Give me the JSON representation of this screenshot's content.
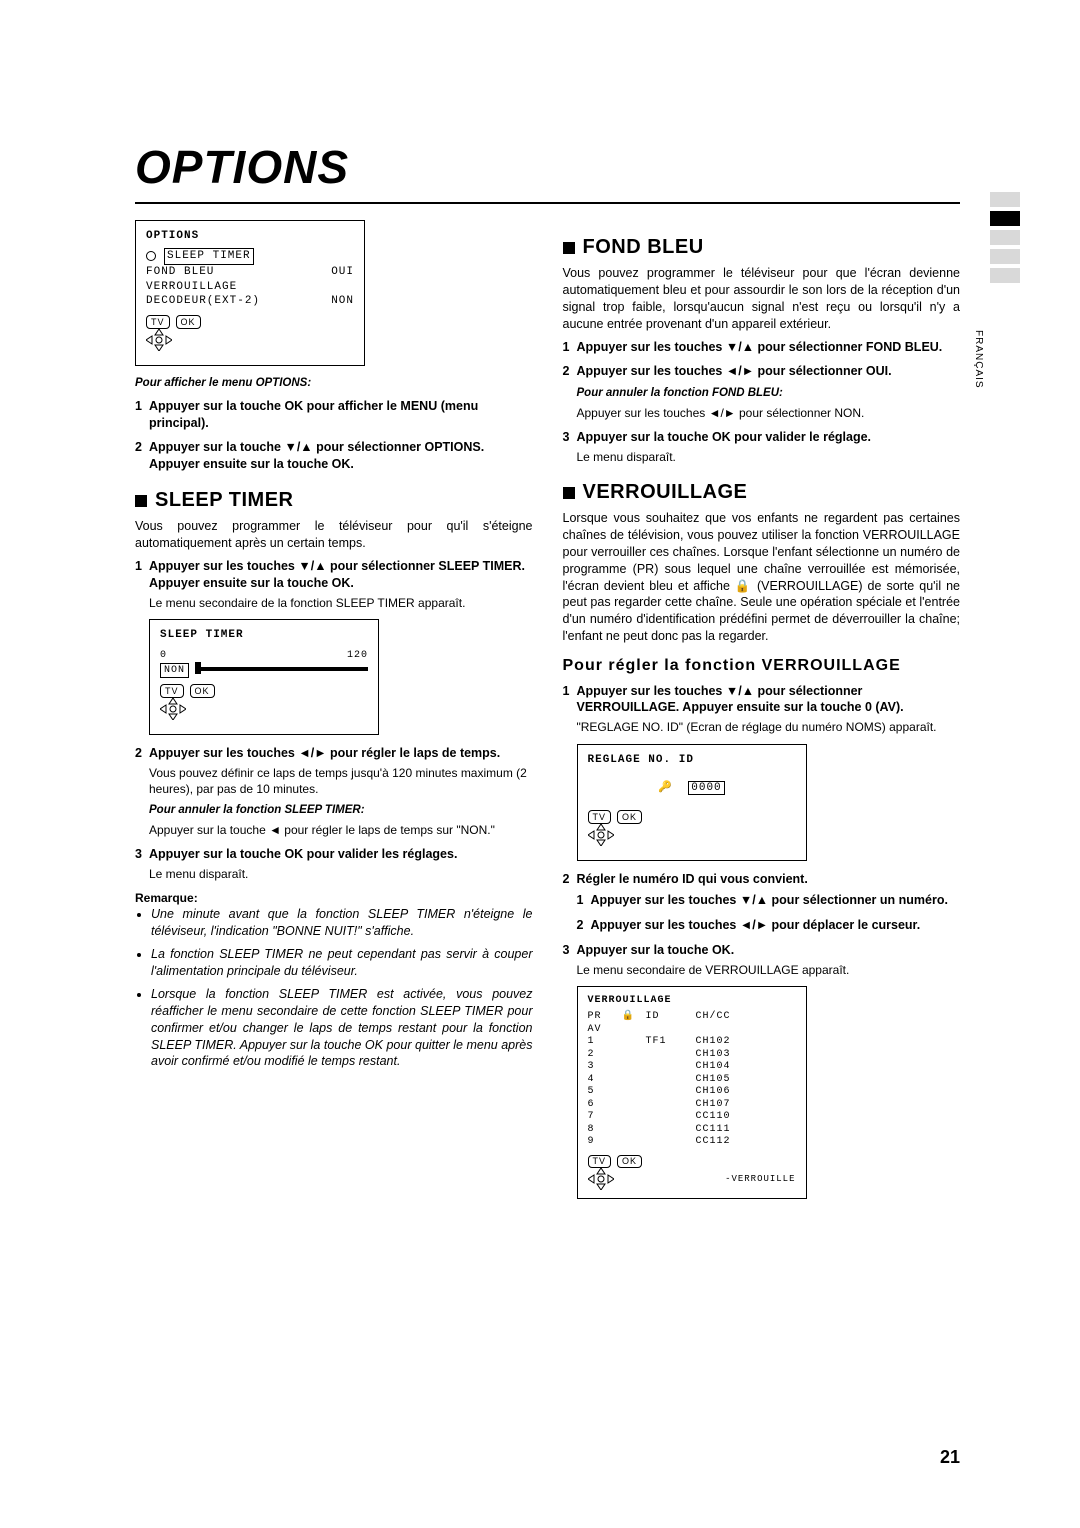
{
  "page": {
    "title": "OPTIONS",
    "number": "21",
    "language_tab": "FRANÇAIS"
  },
  "side_tabs": {
    "count": 5,
    "active_index": 1,
    "inactive_color": "#d9d9d9",
    "active_color": "#000000"
  },
  "osd_options": {
    "title": "OPTIONS",
    "items": [
      {
        "label": "SLEEP TIMER",
        "value": "",
        "selected": true
      },
      {
        "label": "FOND BLEU",
        "value": "OUI"
      },
      {
        "label": "VERROUILLAGE",
        "value": ""
      },
      {
        "label": "DECODEUR(EXT-2)",
        "value": "NON"
      }
    ],
    "badges": [
      "TV",
      "OK"
    ]
  },
  "left": {
    "caption_display": "Pour afficher le menu OPTIONS:",
    "display_steps": [
      "Appuyer sur la touche OK pour afficher le MENU (menu principal).",
      "Appuyer sur la touche ▼/▲ pour sélectionner OPTIONS. Appuyer ensuite sur la touche OK."
    ],
    "sleep": {
      "heading": "SLEEP TIMER",
      "intro": "Vous pouvez programmer le téléviseur pour qu'il s'éteigne automatiquement après un certain temps.",
      "step1": "Appuyer sur les touches ▼/▲ pour sélectionner SLEEP TIMER. Appuyer ensuite sur la touche OK.",
      "step1_sub": "Le menu secondaire de la fonction SLEEP TIMER apparaît.",
      "osd": {
        "title": "SLEEP TIMER",
        "min": "0",
        "max": "120",
        "non": "NON",
        "badges": [
          "TV",
          "OK"
        ]
      },
      "step2": "Appuyer sur les touches ◄/► pour régler le laps de temps.",
      "step2_sub": "Vous pouvez définir ce laps de temps jusqu'à 120 minutes maximum (2 heures), par pas de 10 minutes.",
      "cancel_h": "Pour annuler la fonction SLEEP TIMER:",
      "cancel_t": "Appuyer sur la touche ◄ pour régler le laps de temps sur \"NON.\"",
      "step3": "Appuyer sur la touche OK pour valider les réglages.",
      "step3_sub": "Le menu disparaît.",
      "remark_h": "Remarque:",
      "remarks": [
        "Une minute avant que la fonction SLEEP TIMER n'éteigne le téléviseur, l'indication \"BONNE NUIT!\" s'affiche.",
        "La fonction SLEEP TIMER ne peut cependant pas servir à couper l'alimentation principale du téléviseur.",
        "Lorsque la fonction SLEEP TIMER est activée, vous pouvez réafficher le menu secondaire de cette fonction SLEEP TIMER pour confirmer et/ou changer le laps de temps restant pour la fonction SLEEP TIMER. Appuyer sur la touche OK pour quitter le menu après avoir confirmé et/ou modifié le temps restant."
      ]
    }
  },
  "right": {
    "fond": {
      "heading": "FOND BLEU",
      "intro": "Vous pouvez programmer le téléviseur pour que l'écran devienne automatiquement bleu et pour assourdir le son lors de la réception d'un signal trop faible, lorsqu'aucun signal n'est reçu ou lorsqu'il n'y a aucune entrée provenant d'un appareil extérieur.",
      "step1": "Appuyer sur les touches ▼/▲ pour sélectionner FOND BLEU.",
      "step2": "Appuyer sur les touches ◄/► pour sélectionner OUI.",
      "cancel_h": "Pour annuler la fonction FOND BLEU:",
      "cancel_t": "Appuyer sur les touches ◄/► pour sélectionner NON.",
      "step3": "Appuyer sur la touche OK pour valider le réglage.",
      "step3_sub": "Le menu disparaît."
    },
    "lock": {
      "heading": "VERROUILLAGE",
      "intro": "Lorsque vous souhaitez que vos enfants ne regardent pas certaines chaînes de télévision, vous pouvez utiliser la fonction VERROUILLAGE pour verrouiller ces chaînes. Lorsque l'enfant sélectionne un numéro de programme (PR) sous lequel une chaîne verrouillée est mémorisée, l'écran devient bleu et affiche 🔒 (VERROUILLAGE) de sorte qu'il ne peut pas regarder cette chaîne. Seule une opération spéciale et l'entrée d'un numéro d'identification prédéfini permet de déverrouiller la chaîne; l'enfant ne peut donc pas la regarder.",
      "sub_heading": "Pour régler la fonction VERROUILLAGE",
      "step1": "Appuyer sur les touches ▼/▲ pour sélectionner VERROUILLAGE. Appuyer ensuite sur la touche 0 (AV).",
      "step1_sub": "\"REGLAGE NO. ID\" (Ecran de réglage du numéro NOMS) apparaît.",
      "osd_id": {
        "title": "REGLAGE NO. ID",
        "value": "0000",
        "badges": [
          "TV",
          "OK"
        ]
      },
      "step2_h": "Régler le numéro ID qui vous convient.",
      "step2_1": "Appuyer sur les touches ▼/▲ pour sélectionner un numéro.",
      "step2_2": "Appuyer sur les touches ◄/► pour déplacer le curseur.",
      "step3": "Appuyer sur la touche OK.",
      "step3_sub": "Le menu secondaire de VERROUILLAGE apparaît.",
      "osd_lock": {
        "title": "VERROUILLAGE",
        "headers": [
          "PR",
          "🔒",
          "ID",
          "CH/CC"
        ],
        "rows": [
          [
            "AV",
            "",
            "",
            ""
          ],
          [
            "1",
            "",
            "TF1",
            "CH102"
          ],
          [
            "2",
            "",
            "",
            "CH103"
          ],
          [
            "3",
            "",
            "",
            "CH104"
          ],
          [
            "4",
            "",
            "",
            "CH105"
          ],
          [
            "5",
            "",
            "",
            "CH106"
          ],
          [
            "6",
            "",
            "",
            "CH107"
          ],
          [
            "7",
            "",
            "",
            "CC110"
          ],
          [
            "8",
            "",
            "",
            "CC111"
          ],
          [
            "9",
            "",
            "",
            "CC112"
          ]
        ],
        "footer": "-VERROUILLE",
        "badges": [
          "TV",
          "OK"
        ]
      }
    }
  }
}
